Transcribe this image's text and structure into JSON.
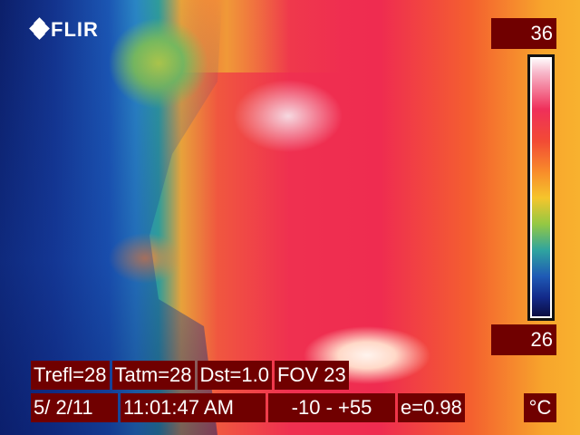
{
  "brand": {
    "logo_text": "FLIR"
  },
  "scale": {
    "max": "36",
    "min": "26",
    "unit": "°C",
    "palette": "iron-rainbow"
  },
  "info": {
    "row1": [
      "Trefl=28",
      "Tatm=28",
      "Dst=1.0",
      "FOV 23"
    ],
    "date": "5/ 2/11",
    "time": "11:01:47 AM",
    "range": "-10 -  +55",
    "emissivity": "e=0.98"
  }
}
